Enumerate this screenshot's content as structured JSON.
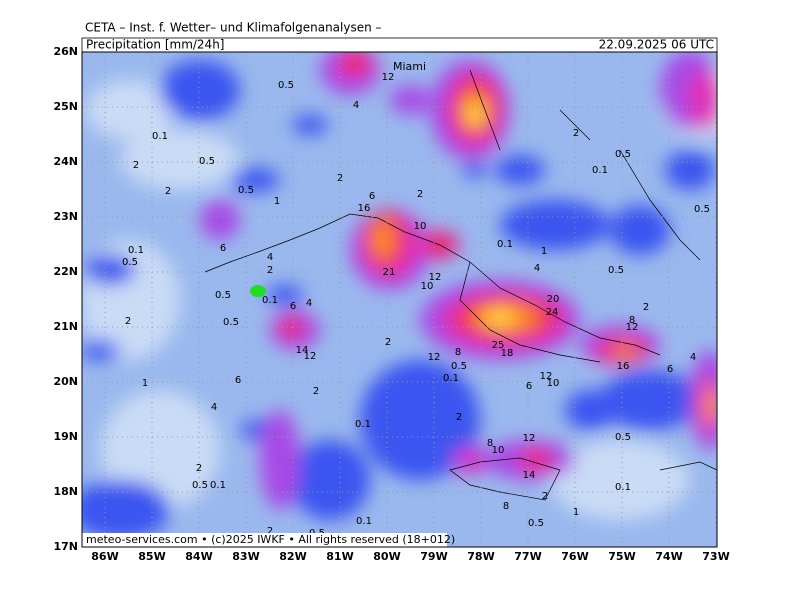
{
  "header": {
    "title": "CETA – Inst. f. Wetter– und Klimafolgenanalysen –",
    "subtitle": "Precipitation [mm/24h]",
    "valid": "22.09.2025 06 UTC"
  },
  "footer": "meteo-services.com • (c)2025 IWKF • All rights reserved (18+012)",
  "place": "Miami",
  "lat_ticks": [
    {
      "value": 26,
      "label": "26N"
    },
    {
      "value": 25,
      "label": "25N"
    },
    {
      "value": 24,
      "label": "24N"
    },
    {
      "value": 23,
      "label": "23N"
    },
    {
      "value": 22,
      "label": "22N"
    },
    {
      "value": 21,
      "label": "21N"
    },
    {
      "value": 20,
      "label": "20N"
    },
    {
      "value": 19,
      "label": "19N"
    },
    {
      "value": 18,
      "label": "18N"
    },
    {
      "value": 17,
      "label": "17N"
    }
  ],
  "lon_ticks": [
    {
      "value": -86,
      "label": "86W"
    },
    {
      "value": -85,
      "label": "85W"
    },
    {
      "value": -84,
      "label": "84W"
    },
    {
      "value": -83,
      "label": "83W"
    },
    {
      "value": -82,
      "label": "82W"
    },
    {
      "value": -81,
      "label": "81W"
    },
    {
      "value": -80,
      "label": "80W"
    },
    {
      "value": -79,
      "label": "79W"
    },
    {
      "value": -78,
      "label": "78W"
    },
    {
      "value": -77,
      "label": "77W"
    },
    {
      "value": -76,
      "label": "76W"
    },
    {
      "value": -75,
      "label": "75W"
    },
    {
      "value": -74,
      "label": "74W"
    },
    {
      "value": -73,
      "label": "73W"
    }
  ],
  "contour_labels": [
    "0.5",
    "12",
    "4",
    "0.1",
    "0.5",
    "2",
    "2",
    "0.5",
    "1",
    "2",
    "6",
    "16",
    "10",
    "2",
    "2",
    "0.5",
    "0.1",
    "0.5",
    "6",
    "0.1",
    "0.5",
    "4",
    "2",
    "0.5",
    "0.1",
    "6",
    "4",
    "2",
    "0.5",
    "14",
    "12",
    "21",
    "10",
    "12",
    "0.1",
    "1",
    "4",
    "0.5",
    "20",
    "24",
    "8",
    "12",
    "2",
    "25",
    "18",
    "2",
    "12",
    "8",
    "0.5",
    "0.1",
    "16",
    "4",
    "6",
    "12",
    "10",
    "6",
    "1",
    "6",
    "4",
    "2",
    "2",
    "0.1",
    "8",
    "10",
    "12",
    "14",
    "0.5",
    "2",
    "0.5",
    "0.1",
    "0.1",
    "2",
    "2",
    "0.5",
    "0.1",
    "0.5",
    "1",
    "8"
  ]
}
